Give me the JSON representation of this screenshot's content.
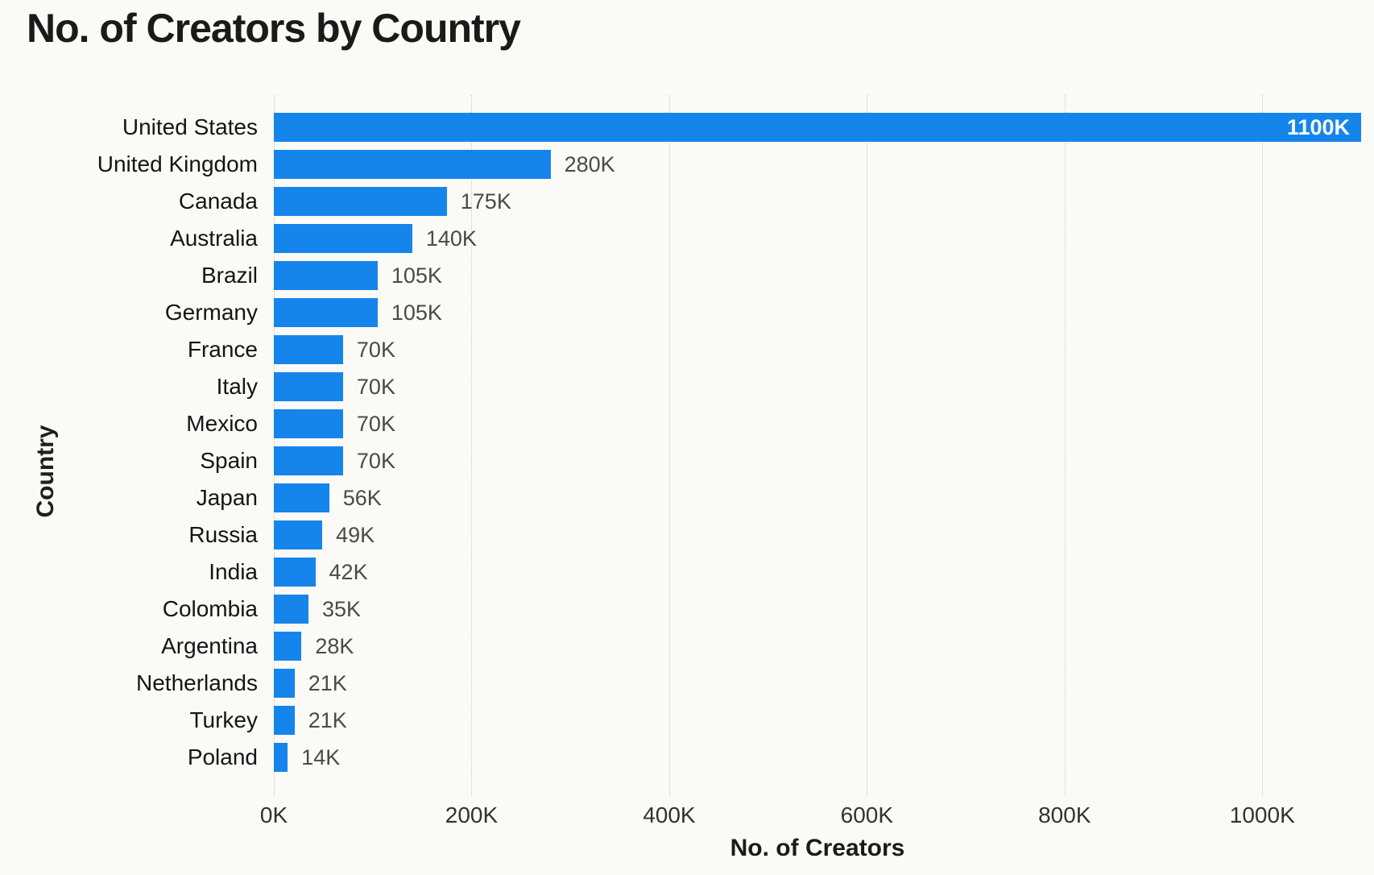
{
  "page": {
    "background_color": "#fbfaf6"
  },
  "chart_data": {
    "type": "bar",
    "orientation": "horizontal",
    "title": "No. of Creators by Country",
    "xlabel": "No. of Creators",
    "ylabel": "Country",
    "categories": [
      "United States",
      "United Kingdom",
      "Canada",
      "Australia",
      "Brazil",
      "Germany",
      "France",
      "Italy",
      "Mexico",
      "Spain",
      "Japan",
      "Russia",
      "India",
      "Colombia",
      "Argentina",
      "Netherlands",
      "Turkey",
      "Poland"
    ],
    "values": [
      1100,
      280,
      175,
      140,
      105,
      105,
      70,
      70,
      70,
      70,
      56,
      49,
      42,
      35,
      28,
      21,
      21,
      14
    ],
    "data_labels": [
      "1100K",
      "280K",
      "175K",
      "140K",
      "105K",
      "105K",
      "70K",
      "70K",
      "70K",
      "70K",
      "56K",
      "49K",
      "42K",
      "35K",
      "28K",
      "21K",
      "21K",
      "14K"
    ],
    "x_ticks": [
      {
        "value": 0,
        "label": "0K"
      },
      {
        "value": 200,
        "label": "200K"
      },
      {
        "value": 400,
        "label": "400K"
      },
      {
        "value": 600,
        "label": "600K"
      },
      {
        "value": 800,
        "label": "800K"
      },
      {
        "value": 1000,
        "label": "1000K"
      }
    ],
    "xlim": [
      0,
      1100
    ],
    "bar_color": "#1585EC",
    "gridline_style": "vertical dotted",
    "gridline_color": "#ccc9c4",
    "data_label_inside_color": "#ffffff",
    "data_label_outside_color": "#4c4a47",
    "legend": "none"
  }
}
